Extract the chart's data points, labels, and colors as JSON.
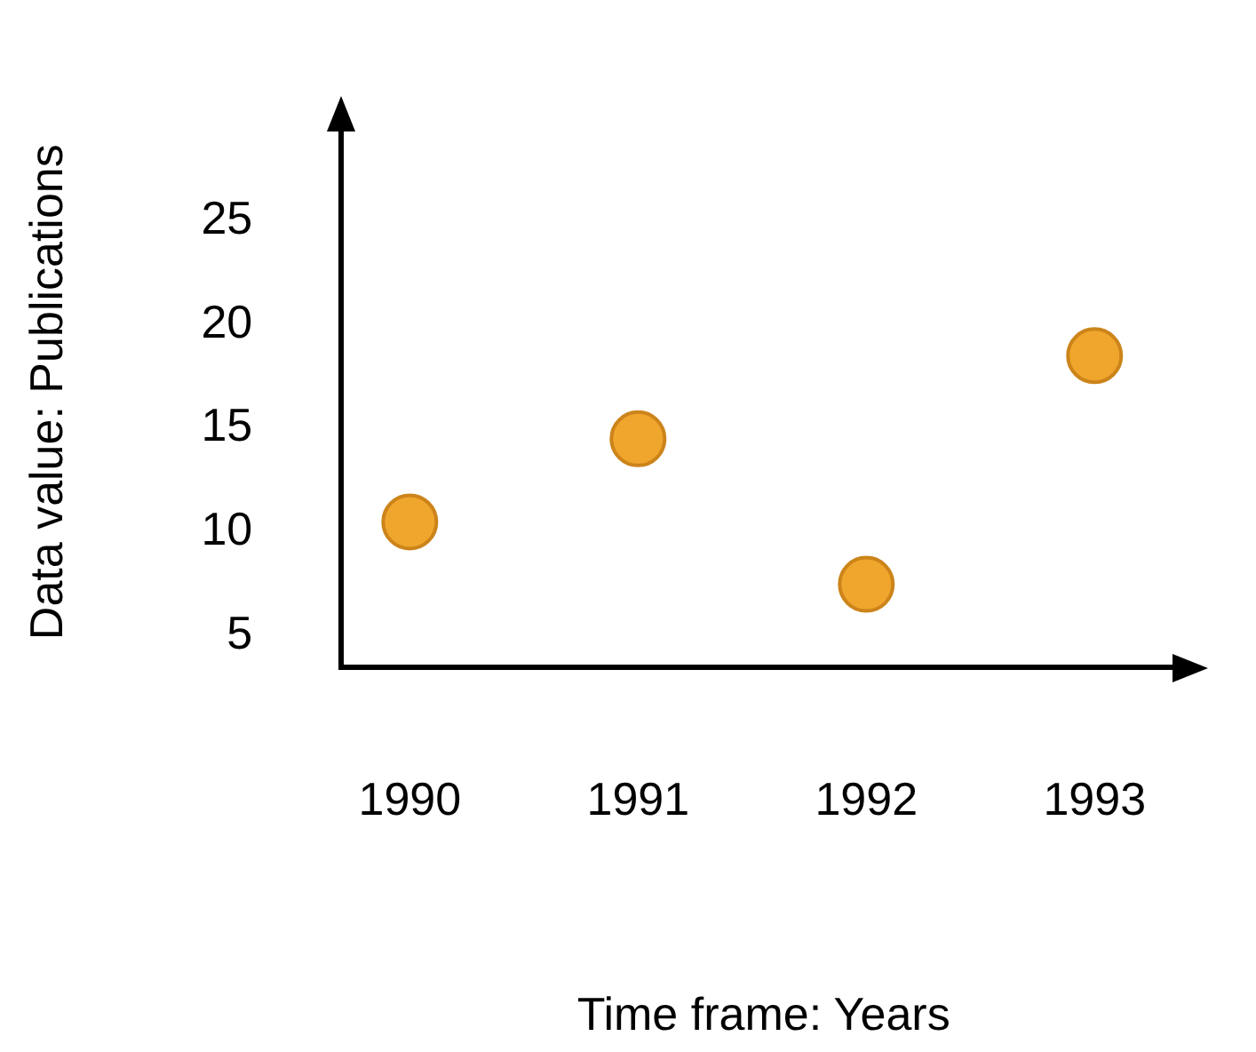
{
  "chart_data": {
    "type": "scatter",
    "xlabel": "Time frame: Years",
    "ylabel": "Data value: Publications",
    "x": [
      1990,
      1991,
      1992,
      1993
    ],
    "series": [
      {
        "color": "#f0a52c",
        "values": [
          10.5,
          14.5,
          7.5,
          18.5
        ]
      }
    ],
    "xlim": [
      1989.7,
      1993.4
    ],
    "xticks": [
      1990,
      1991,
      1992,
      1993
    ],
    "ylim": [
      3.5,
      30
    ],
    "yticks": [
      5,
      10,
      15,
      20,
      25
    ],
    "marker": "circle",
    "grid": false,
    "legend": false
  }
}
